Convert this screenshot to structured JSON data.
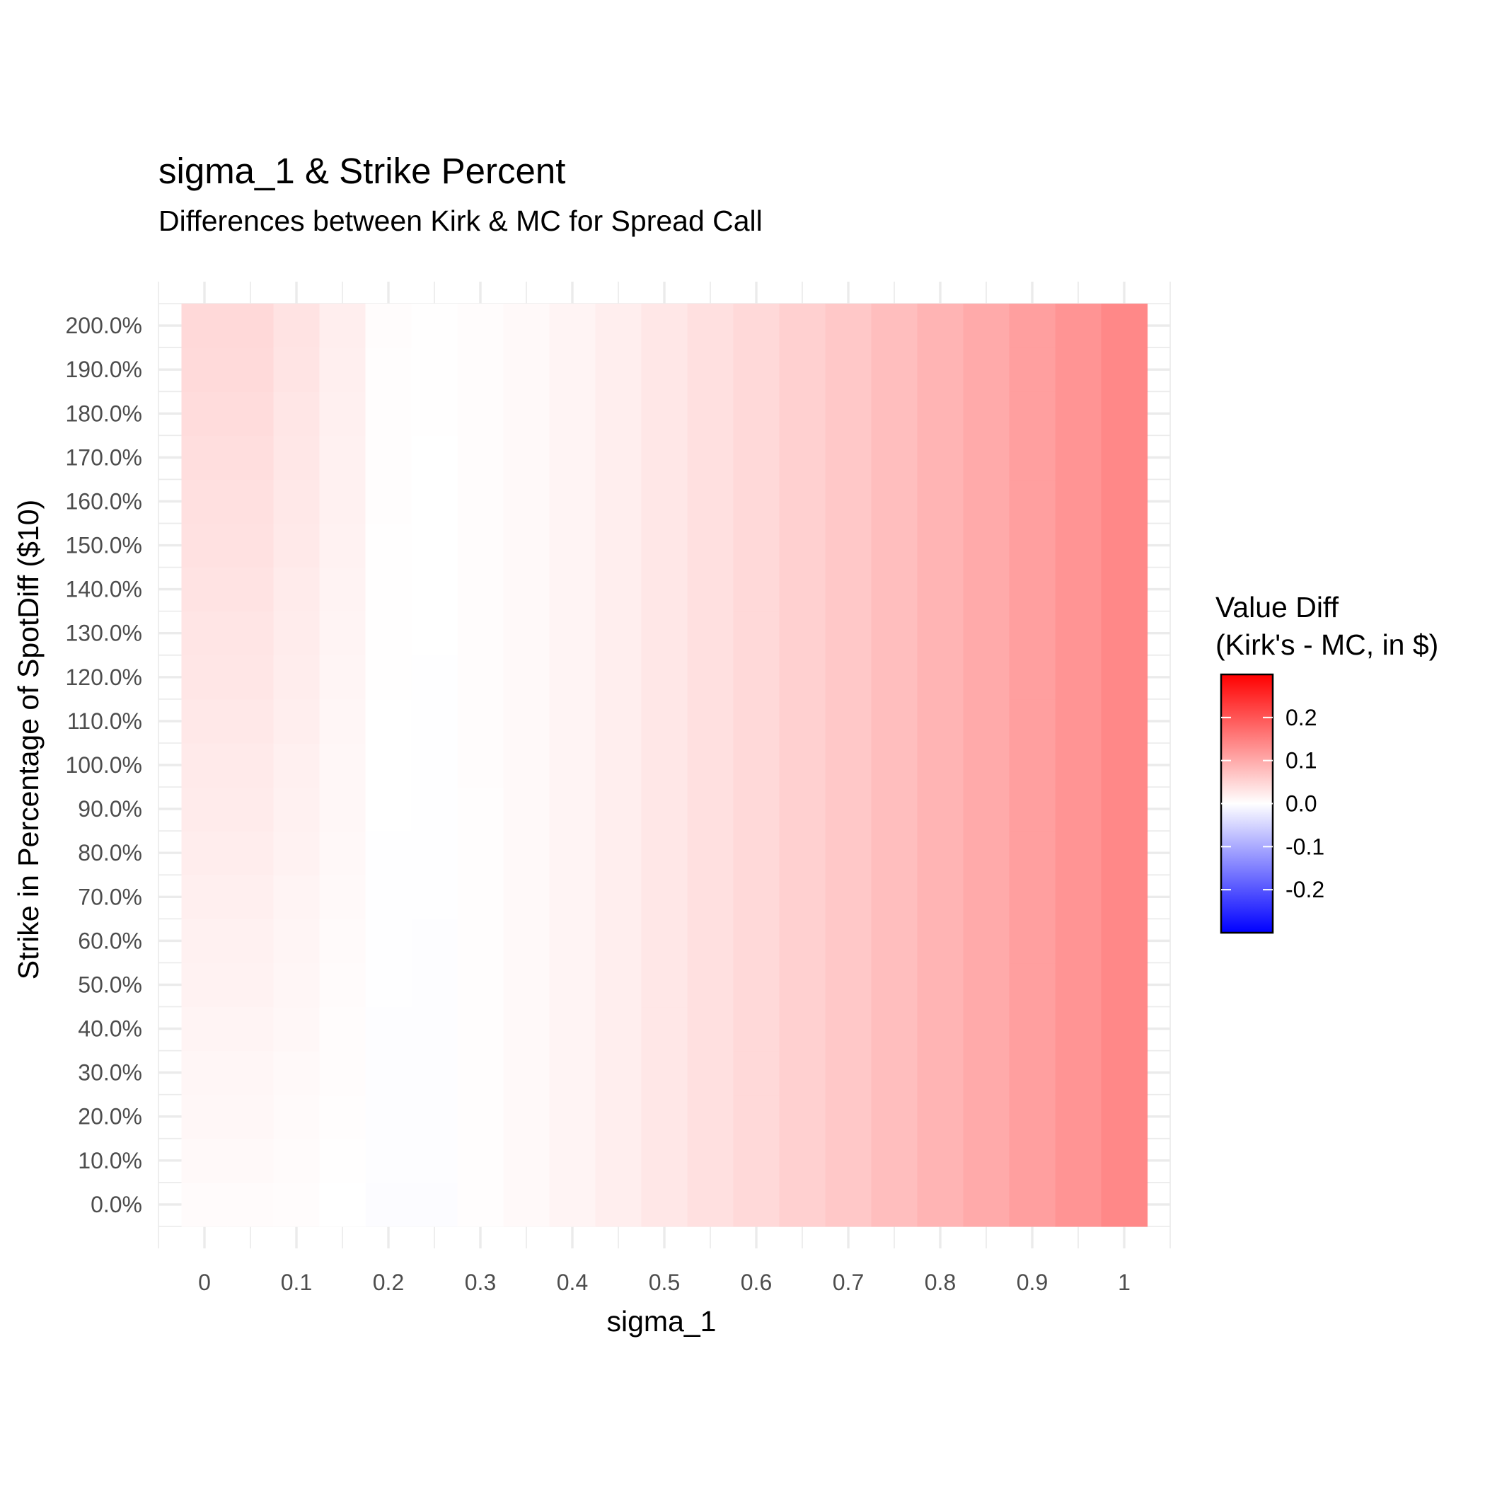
{
  "chart_data": {
    "type": "heatmap",
    "title": "sigma_1 & Strike Percent",
    "subtitle": "Differences between Kirk & MC for Spread Call",
    "xlabel": "sigma_1",
    "ylabel": "Strike in Percentage of SpotDiff ($10)",
    "x": [
      0,
      0.05,
      0.1,
      0.15,
      0.2,
      0.25,
      0.3,
      0.35,
      0.4,
      0.45,
      0.5,
      0.55,
      0.6,
      0.65,
      0.7,
      0.75,
      0.8,
      0.85,
      0.9,
      0.95,
      1.0
    ],
    "y": [
      0,
      10,
      20,
      30,
      40,
      50,
      60,
      70,
      80,
      90,
      100,
      110,
      120,
      130,
      140,
      150,
      160,
      170,
      180,
      190,
      200
    ],
    "x_ticks": [
      "0",
      "0.1",
      "0.2",
      "0.3",
      "0.4",
      "0.5",
      "0.6",
      "0.7",
      "0.8",
      "0.9",
      "1"
    ],
    "y_ticks": [
      "0.0%",
      "10.0%",
      "20.0%",
      "30.0%",
      "40.0%",
      "50.0%",
      "60.0%",
      "70.0%",
      "80.0%",
      "90.0%",
      "100.0%",
      "110.0%",
      "120.0%",
      "130.0%",
      "140.0%",
      "150.0%",
      "160.0%",
      "170.0%",
      "180.0%",
      "190.0%",
      "200.0%"
    ],
    "xlim": [
      -0.05,
      1.05
    ],
    "ylim": [
      -10,
      210
    ],
    "grid": true,
    "column_base_values": [
      0.005,
      0.005,
      0.003,
      0.0,
      -0.003,
      -0.003,
      0.002,
      0.007,
      0.013,
      0.02,
      0.028,
      0.036,
      0.045,
      0.055,
      0.065,
      0.076,
      0.088,
      0.1,
      0.113,
      0.126,
      0.14
    ],
    "column_strike_slopes": [
      0.0002,
      0.0002,
      0.00015,
      0.0001,
      3e-05,
      2e-05,
      1e-05,
      0.0,
      0.0,
      0.0,
      0.0,
      0.0,
      0.0,
      0.0,
      0.0,
      0.0,
      0.0,
      0.0,
      0.0,
      0.0,
      0.0
    ],
    "legend": {
      "title": [
        "Value Diff",
        "(Kirk's - MC, in $)"
      ],
      "position": "right",
      "ticks": [
        "0.2",
        "0.1",
        "0.0",
        "-0.1",
        "-0.2"
      ],
      "tick_values": [
        0.2,
        0.1,
        0.0,
        -0.1,
        -0.2
      ],
      "limits": [
        -0.3,
        0.3
      ],
      "low_color": "#0000ff",
      "mid_color": "#ffffff",
      "high_color": "#ff0000"
    }
  }
}
